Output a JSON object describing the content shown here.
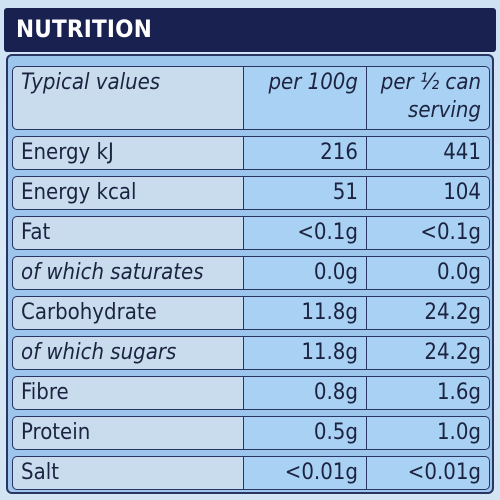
{
  "header": {
    "title": "NUTRITION"
  },
  "columns": {
    "label": "Typical values",
    "per100": "per 100g",
    "serving_line1": "per ½ can",
    "serving_line2": "serving"
  },
  "rows": [
    {
      "name": "Energy kJ",
      "per100": "216",
      "serving": "441",
      "italic": false
    },
    {
      "name": "Energy kcal",
      "per100": "51",
      "serving": "104",
      "italic": false
    },
    {
      "name": "Fat",
      "per100": "<0.1g",
      "serving": "<0.1g",
      "italic": false
    },
    {
      "name": "of which saturates",
      "per100": "0.0g",
      "serving": "0.0g",
      "italic": true
    },
    {
      "name": "Carbohydrate",
      "per100": "11.8g",
      "serving": "24.2g",
      "italic": false
    },
    {
      "name": "of which sugars",
      "per100": "11.8g",
      "serving": "24.2g",
      "italic": true
    },
    {
      "name": "Fibre",
      "per100": "0.8g",
      "serving": "1.6g",
      "italic": false
    },
    {
      "name": "Protein",
      "per100": "0.5g",
      "serving": "1.0g",
      "italic": false
    },
    {
      "name": "Salt",
      "per100": "<0.01g",
      "serving": "<0.01g",
      "italic": false
    }
  ]
}
